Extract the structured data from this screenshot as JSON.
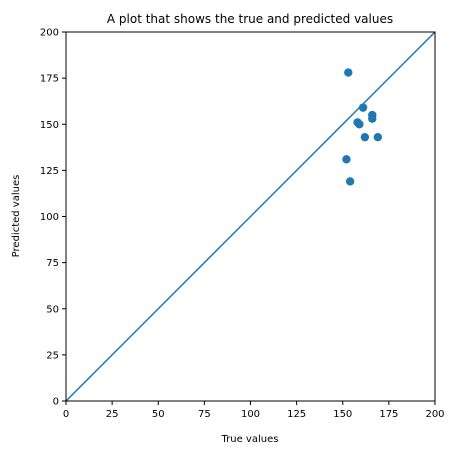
{
  "chart_data": {
    "type": "scatter",
    "title": "A plot that shows the true and predicted values",
    "xlabel": "True values",
    "ylabel": "Predicted values",
    "xlim": [
      0,
      200
    ],
    "ylim": [
      0,
      200
    ],
    "xticks": [
      "0",
      "25",
      "50",
      "75",
      "100",
      "125",
      "150",
      "175",
      "200"
    ],
    "yticks": [
      "0",
      "25",
      "50",
      "75",
      "100",
      "125",
      "150",
      "175",
      "200"
    ],
    "grid": false,
    "reference_line": {
      "x": [
        0,
        200
      ],
      "y": [
        0,
        200
      ]
    },
    "points": [
      {
        "x": 153,
        "y": 178
      },
      {
        "x": 161,
        "y": 159
      },
      {
        "x": 166,
        "y": 155
      },
      {
        "x": 166,
        "y": 153
      },
      {
        "x": 158,
        "y": 151
      },
      {
        "x": 159,
        "y": 150
      },
      {
        "x": 162,
        "y": 143
      },
      {
        "x": 169,
        "y": 143
      },
      {
        "x": 152,
        "y": 131
      },
      {
        "x": 154,
        "y": 119
      }
    ],
    "colors": {
      "series": "#1f77b4",
      "axis": "#000000"
    }
  }
}
